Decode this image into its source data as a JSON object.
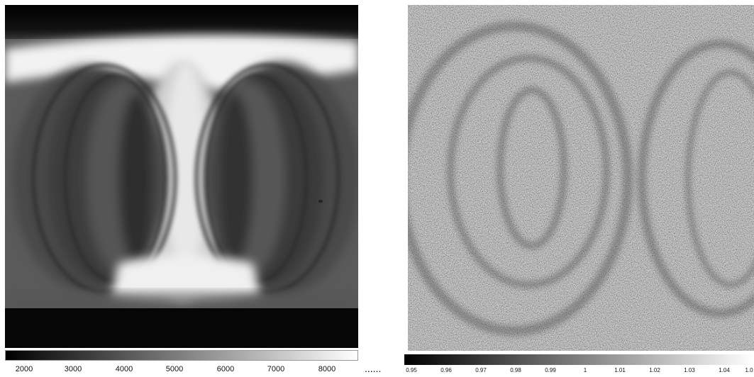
{
  "images": {
    "left": {
      "icon": "flat-field-image",
      "colorbar": {
        "ticks": [
          "2000",
          "3000",
          "4000",
          "5000",
          "6000",
          "7000",
          "8000"
        ]
      }
    },
    "right": {
      "icon": "normalized-noise-image",
      "colorbar": {
        "ticks": [
          "0.95",
          "0.96",
          "0.97",
          "0.98",
          "0.99",
          "1",
          "1.01",
          "1.02",
          "1.03",
          "1.04",
          "1.0"
        ]
      }
    }
  },
  "separator": "......",
  "colors": {
    "background": "#ffffff",
    "colorbar_low": "#000000",
    "colorbar_high": "#ffffff"
  }
}
